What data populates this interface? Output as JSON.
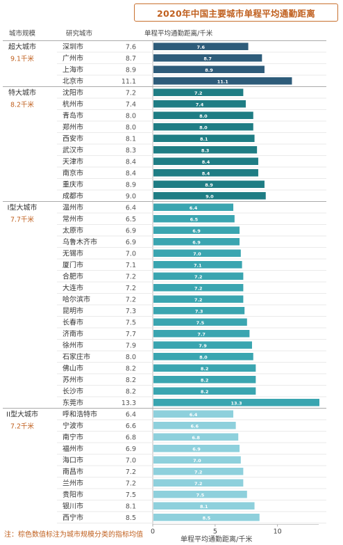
{
  "chart_data": {
    "type": "bar",
    "title": "2020年中国主要城市单程平均通勤距离",
    "column_headers": [
      "城市规模",
      "研究城市",
      "单程平均通勤距离/千米"
    ],
    "xlabel": "单程平均通勤距离/千米",
    "xlim": [
      0,
      13.3
    ],
    "xticks": [
      0,
      5,
      10
    ],
    "note": "注：棕色数值标注为城市规模分类的指标均值",
    "groups": [
      {
        "name": "超大城市",
        "mean": "9.1千米",
        "color": "#2e5c7a",
        "cities": [
          "深圳市",
          "广州市",
          "上海市",
          "北京市"
        ],
        "values": [
          7.6,
          8.7,
          8.9,
          11.1
        ]
      },
      {
        "name": "特大城市",
        "mean": "8.2千米",
        "color": "#1f7d84",
        "cities": [
          "沈阳市",
          "杭州市",
          "青岛市",
          "郑州市",
          "西安市",
          "武汉市",
          "天津市",
          "南京市",
          "重庆市",
          "成都市"
        ],
        "values": [
          7.2,
          7.4,
          8.0,
          8.0,
          8.1,
          8.3,
          8.4,
          8.4,
          8.9,
          9.0
        ]
      },
      {
        "name": "I型大城市",
        "mean": "7.7千米",
        "color": "#3aa5b0",
        "cities": [
          "温州市",
          "常州市",
          "太原市",
          "乌鲁木齐市",
          "无锡市",
          "厦门市",
          "合肥市",
          "大连市",
          "哈尔滨市",
          "昆明市",
          "长春市",
          "济南市",
          "徐州市",
          "石家庄市",
          "佛山市",
          "苏州市",
          "长沙市",
          "东莞市"
        ],
        "values": [
          6.4,
          6.5,
          6.9,
          6.9,
          7.0,
          7.1,
          7.2,
          7.2,
          7.2,
          7.3,
          7.5,
          7.7,
          7.9,
          8.0,
          8.2,
          8.2,
          8.2,
          13.3
        ]
      },
      {
        "name": "II型大城市",
        "mean": "7.2千米",
        "color": "#8ed0dc",
        "cities": [
          "呼和浩特市",
          "宁波市",
          "南宁市",
          "福州市",
          "海口市",
          "南昌市",
          "兰州市",
          "贵阳市",
          "银川市",
          "西宁市"
        ],
        "values": [
          6.4,
          6.6,
          6.8,
          6.9,
          7.0,
          7.2,
          7.2,
          7.5,
          8.1,
          8.5
        ]
      }
    ],
    "legend": "none"
  }
}
